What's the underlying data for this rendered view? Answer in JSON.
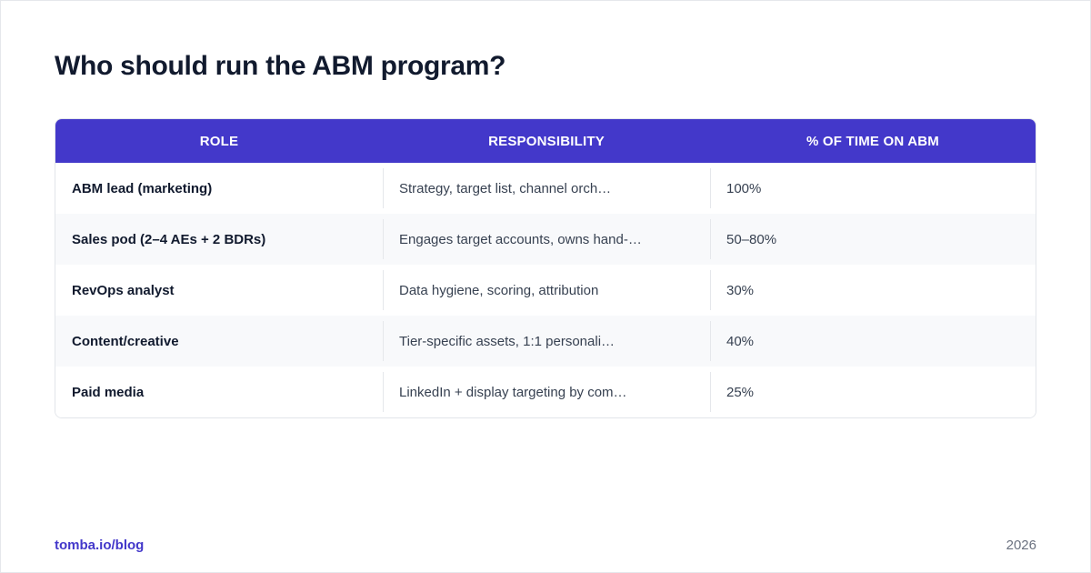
{
  "title": "Who should run the ABM program?",
  "table": {
    "headers": [
      "ROLE",
      "RESPONSIBILITY",
      "% OF TIME ON ABM"
    ],
    "rows": [
      {
        "role": "ABM lead (marketing)",
        "responsibility": "Strategy, target list, channel orch…",
        "time": "100%"
      },
      {
        "role": "Sales pod (2–4 AEs + 2 BDRs)",
        "responsibility": "Engages target accounts, owns hand-…",
        "time": "50–80%"
      },
      {
        "role": "RevOps analyst",
        "responsibility": "Data hygiene, scoring, attribution",
        "time": "30%"
      },
      {
        "role": "Content/creative",
        "responsibility": "Tier-specific assets, 1:1 personali…",
        "time": "40%"
      },
      {
        "role": "Paid media",
        "responsibility": "LinkedIn + display targeting by com…",
        "time": "25%"
      }
    ]
  },
  "footer": {
    "link": "tomba.io/blog",
    "year": "2026"
  },
  "colors": {
    "accent": "#4338ca",
    "title": "#111a2e",
    "row_alt": "#f8f9fb"
  }
}
